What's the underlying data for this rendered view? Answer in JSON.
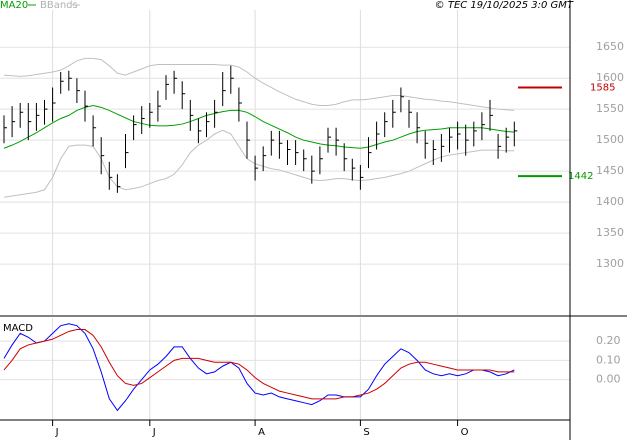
{
  "chart_data": [
    {
      "type": "ohlc",
      "source": "© TEC 19/10/2025 3:0 GMT",
      "categories": [
        null,
        null,
        null,
        null,
        null,
        null,
        "J",
        null,
        null,
        null,
        null,
        null,
        null,
        null,
        null,
        null,
        null,
        null,
        "J",
        null,
        null,
        null,
        null,
        null,
        null,
        null,
        null,
        null,
        null,
        null,
        null,
        "A",
        null,
        null,
        null,
        null,
        null,
        null,
        null,
        null,
        null,
        null,
        null,
        null,
        "S",
        null,
        null,
        null,
        null,
        null,
        null,
        null,
        null,
        null,
        null,
        null,
        "O",
        null,
        null,
        null,
        null,
        null,
        null,
        null
      ],
      "high": [
        1540,
        1555,
        1560,
        1560,
        1560,
        1565,
        1585,
        1610,
        1612,
        1600,
        1580,
        1540,
        1505,
        1465,
        1445,
        1510,
        1540,
        1555,
        1560,
        1580,
        1605,
        1612,
        1595,
        1565,
        1535,
        1545,
        1565,
        1610,
        1620,
        1585,
        1530,
        1475,
        1490,
        1515,
        1515,
        1500,
        1500,
        1485,
        1475,
        1490,
        1520,
        1520,
        1495,
        1470,
        1460,
        1505,
        1530,
        1545,
        1565,
        1585,
        1565,
        1545,
        1515,
        1500,
        1510,
        1520,
        1530,
        1525,
        1530,
        1545,
        1565,
        1510,
        1520,
        1530
      ],
      "low": [
        1495,
        1505,
        1520,
        1500,
        1515,
        1525,
        1530,
        1575,
        1580,
        1560,
        1530,
        1490,
        1445,
        1420,
        1415,
        1455,
        1500,
        1510,
        1520,
        1530,
        1565,
        1575,
        1550,
        1515,
        1495,
        1505,
        1520,
        1555,
        1575,
        1530,
        1470,
        1435,
        1450,
        1475,
        1470,
        1460,
        1460,
        1450,
        1430,
        1445,
        1480,
        1475,
        1450,
        1435,
        1420,
        1455,
        1485,
        1505,
        1520,
        1545,
        1520,
        1495,
        1470,
        1460,
        1465,
        1480,
        1485,
        1475,
        1490,
        1500,
        1515,
        1470,
        1480,
        1490
      ],
      "close": [
        1520,
        1530,
        1545,
        1530,
        1540,
        1550,
        1560,
        1595,
        1600,
        1580,
        1555,
        1520,
        1475,
        1440,
        1425,
        1480,
        1525,
        1535,
        1545,
        1555,
        1590,
        1600,
        1575,
        1540,
        1515,
        1530,
        1545,
        1580,
        1600,
        1560,
        1500,
        1455,
        1475,
        1500,
        1495,
        1485,
        1480,
        1470,
        1450,
        1470,
        1505,
        1500,
        1470,
        1455,
        1440,
        1480,
        1510,
        1530,
        1545,
        1570,
        1545,
        1520,
        1495,
        1485,
        1490,
        1505,
        1510,
        1500,
        1515,
        1525,
        1540,
        1490,
        1505,
        1515
      ],
      "bar_color": "#000000",
      "ma": {
        "name": "MA20",
        "color": "#00a000",
        "values": [
          1487,
          1492,
          1498,
          1505,
          1512,
          1520,
          1528,
          1535,
          1540,
          1548,
          1553,
          1556,
          1553,
          1548,
          1542,
          1536,
          1530,
          1527,
          1524,
          1523,
          1523,
          1524,
          1526,
          1530,
          1535,
          1540,
          1543,
          1546,
          1548,
          1548,
          1545,
          1538,
          1530,
          1524,
          1518,
          1512,
          1505,
          1500,
          1497,
          1494,
          1492,
          1491,
          1489,
          1488,
          1487,
          1489,
          1493,
          1497,
          1500,
          1505,
          1510,
          1514,
          1516,
          1517,
          1518,
          1520,
          1520,
          1520,
          1520,
          1520,
          1518,
          1516,
          1514,
          1513
        ]
      },
      "bands": {
        "name": "BBands",
        "color": "#c0c0c0",
        "upper": [
          1605,
          1604,
          1603,
          1604,
          1606,
          1608,
          1610,
          1613,
          1620,
          1628,
          1632,
          1632,
          1630,
          1620,
          1608,
          1605,
          1610,
          1615,
          1620,
          1622,
          1622,
          1622,
          1622,
          1622,
          1622,
          1622,
          1622,
          1621,
          1621,
          1618,
          1610,
          1600,
          1592,
          1585,
          1578,
          1572,
          1566,
          1562,
          1558,
          1556,
          1556,
          1558,
          1562,
          1565,
          1565,
          1566,
          1568,
          1570,
          1572,
          1572,
          1570,
          1568,
          1566,
          1565,
          1563,
          1562,
          1560,
          1558,
          1556,
          1554,
          1552,
          1550,
          1549,
          1548
        ],
        "lower": [
          1408,
          1410,
          1412,
          1414,
          1416,
          1420,
          1440,
          1470,
          1490,
          1492,
          1492,
          1490,
          1470,
          1440,
          1425,
          1420,
          1422,
          1425,
          1430,
          1435,
          1438,
          1445,
          1460,
          1480,
          1492,
          1500,
          1510,
          1516,
          1510,
          1490,
          1470,
          1462,
          1458,
          1454,
          1452,
          1448,
          1444,
          1440,
          1436,
          1435,
          1436,
          1438,
          1438,
          1436,
          1435,
          1436,
          1438,
          1440,
          1443,
          1446,
          1450,
          1456,
          1462,
          1468,
          1473,
          1476,
          1478,
          1480,
          1482,
          1484,
          1484,
          1484,
          1483,
          1483
        ]
      },
      "levels": [
        {
          "value": 1585,
          "label": "1585",
          "color": "#c00000"
        },
        {
          "value": 1442,
          "label": "1442",
          "color": "#009900"
        }
      ],
      "ylim": [
        1218,
        1710
      ],
      "yticks": [
        1300,
        1350,
        1400,
        1450,
        1500,
        1550,
        1600,
        1650
      ],
      "grid": true
    },
    {
      "type": "line",
      "title": "MACD",
      "series": [
        {
          "color": "#0000ff",
          "values": [
            0.11,
            0.18,
            0.24,
            0.22,
            0.19,
            0.2,
            0.24,
            0.28,
            0.29,
            0.28,
            0.24,
            0.16,
            0.04,
            -0.1,
            -0.16,
            -0.11,
            -0.05,
            0.0,
            0.05,
            0.08,
            0.12,
            0.17,
            0.17,
            0.11,
            0.06,
            0.03,
            0.04,
            0.07,
            0.09,
            0.06,
            -0.02,
            -0.07,
            -0.08,
            -0.07,
            -0.09,
            -0.1,
            -0.11,
            -0.12,
            -0.13,
            -0.11,
            -0.08,
            -0.08,
            -0.09,
            -0.09,
            -0.09,
            -0.05,
            0.02,
            0.08,
            0.12,
            0.16,
            0.14,
            0.1,
            0.05,
            0.03,
            0.02,
            0.03,
            0.02,
            0.03,
            0.05,
            0.05,
            0.04,
            0.02,
            0.03,
            0.05
          ]
        },
        {
          "color": "#cc0000",
          "values": [
            0.05,
            0.1,
            0.16,
            0.18,
            0.19,
            0.2,
            0.21,
            0.23,
            0.25,
            0.26,
            0.26,
            0.23,
            0.17,
            0.09,
            0.02,
            -0.02,
            -0.03,
            -0.02,
            0.01,
            0.04,
            0.07,
            0.1,
            0.11,
            0.11,
            0.11,
            0.1,
            0.09,
            0.09,
            0.09,
            0.08,
            0.05,
            0.01,
            -0.02,
            -0.04,
            -0.06,
            -0.07,
            -0.08,
            -0.09,
            -0.1,
            -0.1,
            -0.1,
            -0.1,
            -0.09,
            -0.09,
            -0.08,
            -0.07,
            -0.05,
            -0.02,
            0.02,
            0.06,
            0.08,
            0.09,
            0.09,
            0.08,
            0.07,
            0.06,
            0.05,
            0.05,
            0.05,
            0.05,
            0.05,
            0.04,
            0.04,
            0.04
          ]
        }
      ],
      "ylim": [
        -0.21,
        0.32
      ],
      "yticks": [
        {
          "value": 0.2,
          "label": "0.20"
        },
        {
          "value": 0.1,
          "label": "0.10"
        },
        {
          "value": 0,
          "label": "0.00"
        }
      ],
      "grid": true
    }
  ]
}
